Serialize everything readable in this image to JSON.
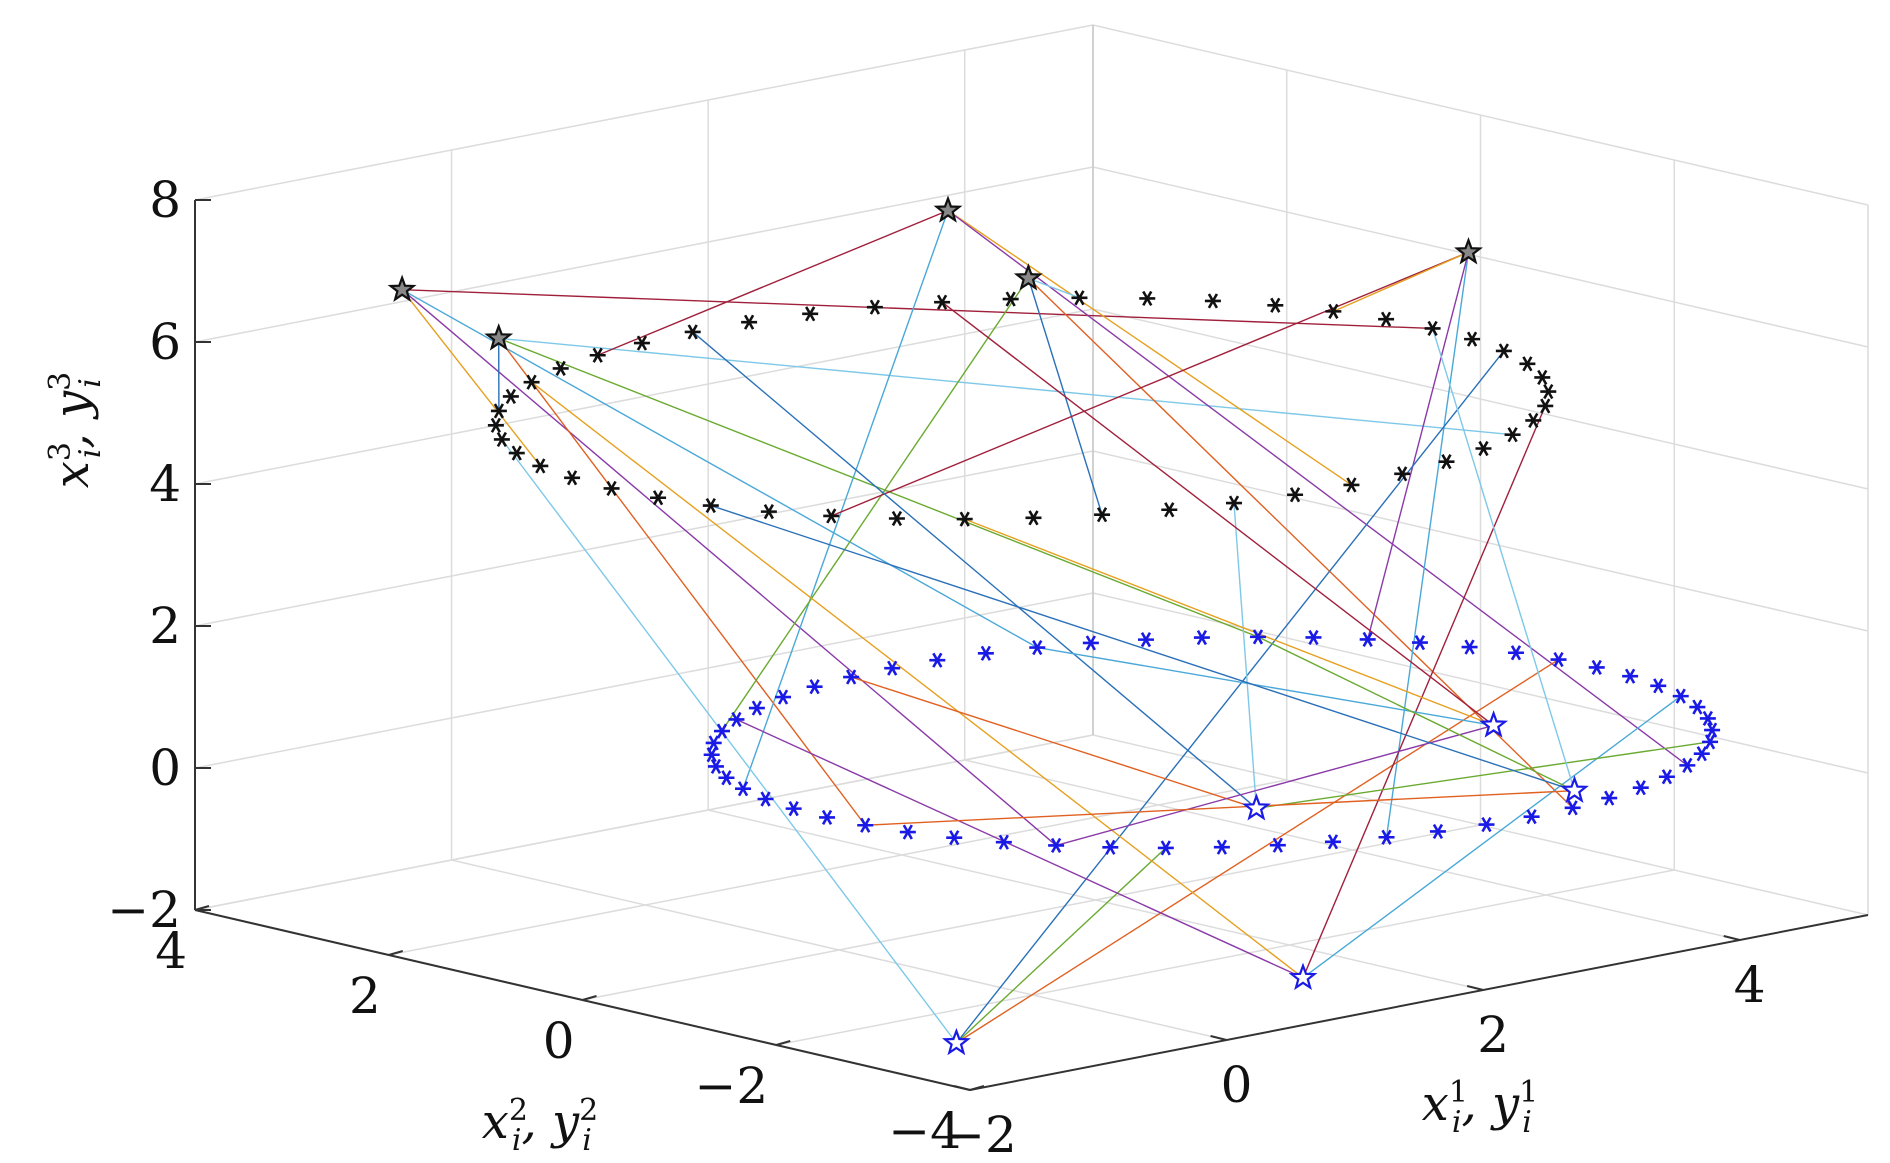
{
  "chart_data": {
    "type": "scatter3d",
    "title": "",
    "xlabel": {
      "main": "x",
      "sup": "1",
      "sub": "i",
      "sep": ",",
      "main2": "y",
      "sup2": "1",
      "sub2": "i"
    },
    "ylabel": {
      "main": "x",
      "sup": "2",
      "sub": "i",
      "sep": ",",
      "main2": "y",
      "sup2": "2",
      "sub2": "i"
    },
    "zlabel": {
      "main": "x",
      "sup": "3",
      "sub": "i",
      "sep": ",",
      "main2": "y",
      "sup2": "3",
      "sub2": "i"
    },
    "xlim": [
      -2,
      5
    ],
    "ylim": [
      -4,
      4
    ],
    "zlim": [
      -2,
      8
    ],
    "xticks": [
      -2,
      0,
      2,
      4
    ],
    "yticks": [
      -4,
      -2,
      0,
      2,
      4
    ],
    "zticks": [
      -2,
      0,
      2,
      4,
      6,
      8
    ],
    "xtick_labels": [
      "−2",
      "0",
      "2",
      "4"
    ],
    "ytick_labels": [
      "−4",
      "−2",
      "0",
      "2",
      "4"
    ],
    "ztick_labels": [
      "−2",
      "0",
      "2",
      "4",
      "6",
      "8"
    ],
    "grid": true,
    "colors": {
      "upper_formation": "#111111",
      "lower_formation": "#1a1ae6",
      "start_black": "#888888",
      "start_blue": "#1a1ae6",
      "trajectories": [
        "#a0203c",
        "#4aa8d8",
        "#e6a020",
        "#8a3aa8",
        "#6aaa30",
        "#2a70b8",
        "#e06020",
        "#7ec8e8"
      ]
    },
    "upper_formation": {
      "marker": "asterisk",
      "center": [
        1.2,
        -0.3,
        5.3
      ],
      "radius_x": 3.2,
      "radius_y": 3.4,
      "count": 48
    },
    "lower_formation": {
      "marker": "asterisk",
      "center": [
        2.0,
        -1.2,
        0.6
      ],
      "radius_x": 3.0,
      "radius_y": 3.3,
      "count": 56
    },
    "start_points_black": [
      [
        -2.5,
        1.2,
        7.8
      ],
      [
        -2.2,
        0.6,
        7.2
      ],
      [
        1.0,
        0.2,
        8.0
      ],
      [
        1.4,
        -0.1,
        7.0
      ],
      [
        4.0,
        -1.2,
        6.8
      ]
    ],
    "start_points_blue": [
      [
        -1.2,
        -2.8,
        -2.0
      ],
      [
        1.2,
        -3.2,
        -1.8
      ],
      [
        2.8,
        -0.6,
        -0.8
      ],
      [
        4.8,
        -0.4,
        -0.4
      ],
      [
        4.6,
        -1.5,
        -0.9
      ]
    ]
  }
}
